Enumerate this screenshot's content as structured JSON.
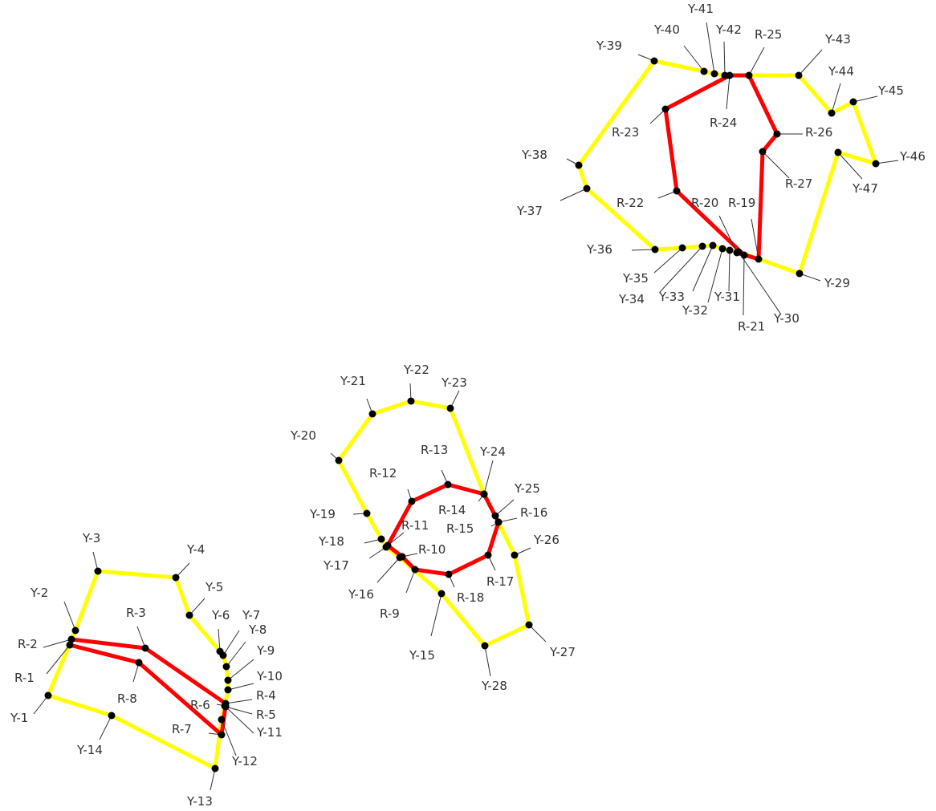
{
  "colors": {
    "yellow_path": "#ffff00",
    "red_path": "#ff0000",
    "vertex": "#000000",
    "leader": "#333333",
    "label_text": "#333333",
    "background": "#ffffff"
  },
  "polylines": [
    {
      "name": "yellow-polygon-1",
      "color": "yellow_path",
      "closed": true,
      "points": [
        "Y-1",
        "Y-2",
        "Y-3",
        "Y-4",
        "Y-5",
        "Y-6",
        "Y-7",
        "Y-8",
        "Y-9",
        "Y-10",
        "Y-11",
        "Y-12",
        "Y-13",
        "Y-14"
      ]
    },
    {
      "name": "yellow-polygon-2",
      "color": "yellow_path",
      "closed": true,
      "points": [
        "Y-15",
        "Y-16",
        "Y-17",
        "Y-18",
        "Y-19",
        "Y-20",
        "Y-21",
        "Y-22",
        "Y-23",
        "Y-24",
        "Y-25",
        "Y-26",
        "Y-27",
        "Y-28"
      ]
    },
    {
      "name": "yellow-polygon-3",
      "color": "yellow_path",
      "closed": true,
      "points": [
        "Y-29",
        "Y-30",
        "Y-31",
        "Y-32",
        "Y-33",
        "Y-34",
        "Y-35",
        "Y-36",
        "Y-37",
        "Y-38",
        "Y-39",
        "Y-40",
        "Y-41",
        "Y-42",
        "Y-43",
        "Y-44",
        "Y-45",
        "Y-46",
        "Y-47"
      ]
    },
    {
      "name": "red-polygon-1",
      "color": "red_path",
      "closed": true,
      "points": [
        "R-1",
        "R-2",
        "R-3",
        "R-4",
        "R-5",
        "R-6",
        "R-7",
        "R-8"
      ]
    },
    {
      "name": "red-polygon-2",
      "color": "red_path",
      "closed": true,
      "points": [
        "R-9",
        "R-10",
        "R-11",
        "R-12",
        "R-13",
        "R-14",
        "R-15",
        "R-16",
        "R-17",
        "R-18"
      ]
    },
    {
      "name": "red-polygon-3",
      "color": "red_path",
      "closed": true,
      "points": [
        "R-19",
        "R-20",
        "R-21",
        "R-22",
        "R-23",
        "R-24",
        "R-25",
        "R-26",
        "R-27"
      ]
    }
  ],
  "vertices": [
    {
      "id": "Y-1",
      "label": "Y-1"
    },
    {
      "id": "Y-2",
      "label": "Y-2"
    },
    {
      "id": "Y-3",
      "label": "Y-3"
    },
    {
      "id": "Y-4",
      "label": "Y-4"
    },
    {
      "id": "Y-5",
      "label": "Y-5"
    },
    {
      "id": "Y-6",
      "label": "Y-6"
    },
    {
      "id": "Y-7",
      "label": "Y-7"
    },
    {
      "id": "Y-8",
      "label": "Y-8"
    },
    {
      "id": "Y-9",
      "label": "Y-9"
    },
    {
      "id": "Y-10",
      "label": "Y-10"
    },
    {
      "id": "Y-11",
      "label": "Y-11"
    },
    {
      "id": "Y-12",
      "label": "Y-12"
    },
    {
      "id": "Y-13",
      "label": "Y-13"
    },
    {
      "id": "Y-14",
      "label": "Y-14"
    },
    {
      "id": "Y-15",
      "label": "Y-15"
    },
    {
      "id": "Y-16",
      "label": "Y-16"
    },
    {
      "id": "Y-17",
      "label": "Y-17"
    },
    {
      "id": "Y-18",
      "label": "Y-18"
    },
    {
      "id": "Y-19",
      "label": "Y-19"
    },
    {
      "id": "Y-20",
      "label": "Y-20"
    },
    {
      "id": "Y-21",
      "label": "Y-21"
    },
    {
      "id": "Y-22",
      "label": "Y-22"
    },
    {
      "id": "Y-23",
      "label": "Y-23"
    },
    {
      "id": "Y-24",
      "label": "Y-24"
    },
    {
      "id": "Y-25",
      "label": "Y-25"
    },
    {
      "id": "Y-26",
      "label": "Y-26"
    },
    {
      "id": "Y-27",
      "label": "Y-27"
    },
    {
      "id": "Y-28",
      "label": "Y-28"
    },
    {
      "id": "Y-29",
      "label": "Y-29"
    },
    {
      "id": "Y-30",
      "label": "Y-30"
    },
    {
      "id": "Y-31",
      "label": "Y-31"
    },
    {
      "id": "Y-32",
      "label": "Y-32"
    },
    {
      "id": "Y-33",
      "label": "Y-33"
    },
    {
      "id": "Y-34",
      "label": "Y-34"
    },
    {
      "id": "Y-35",
      "label": "Y-35"
    },
    {
      "id": "Y-36",
      "label": "Y-36"
    },
    {
      "id": "Y-37",
      "label": "Y-37"
    },
    {
      "id": "Y-38",
      "label": "Y-38"
    },
    {
      "id": "Y-39",
      "label": "Y-39"
    },
    {
      "id": "Y-40",
      "label": "Y-40"
    },
    {
      "id": "Y-41",
      "label": "Y-41"
    },
    {
      "id": "Y-42",
      "label": "Y-42"
    },
    {
      "id": "Y-43",
      "label": "Y-43"
    },
    {
      "id": "Y-44",
      "label": "Y-44"
    },
    {
      "id": "Y-45",
      "label": "Y-45"
    },
    {
      "id": "Y-46",
      "label": "Y-46"
    },
    {
      "id": "Y-47",
      "label": "Y-47"
    },
    {
      "id": "R-1",
      "label": "R-1"
    },
    {
      "id": "R-2",
      "label": "R-2"
    },
    {
      "id": "R-3",
      "label": "R-3"
    },
    {
      "id": "R-4",
      "label": "R-4"
    },
    {
      "id": "R-5",
      "label": "R-5"
    },
    {
      "id": "R-6",
      "label": "R-6"
    },
    {
      "id": "R-7",
      "label": "R-7"
    },
    {
      "id": "R-8",
      "label": "R-8"
    },
    {
      "id": "R-9",
      "label": "R-9"
    },
    {
      "id": "R-10",
      "label": "R-10"
    },
    {
      "id": "R-11",
      "label": "R-11"
    },
    {
      "id": "R-12",
      "label": "R-12"
    },
    {
      "id": "R-13",
      "label": "R-13"
    },
    {
      "id": "R-14",
      "label": "R-14"
    },
    {
      "id": "R-15",
      "label": "R-15"
    },
    {
      "id": "R-16",
      "label": "R-16"
    },
    {
      "id": "R-17",
      "label": "R-17"
    },
    {
      "id": "R-18",
      "label": "R-18"
    },
    {
      "id": "R-19",
      "label": "R-19"
    },
    {
      "id": "R-20",
      "label": "R-20"
    },
    {
      "id": "R-21",
      "label": "R-21"
    },
    {
      "id": "R-22",
      "label": "R-22"
    },
    {
      "id": "R-23",
      "label": "R-23"
    },
    {
      "id": "R-24",
      "label": "R-24"
    },
    {
      "id": "R-25",
      "label": "R-25"
    },
    {
      "id": "R-26",
      "label": "R-26"
    },
    {
      "id": "R-27",
      "label": "R-27"
    }
  ]
}
